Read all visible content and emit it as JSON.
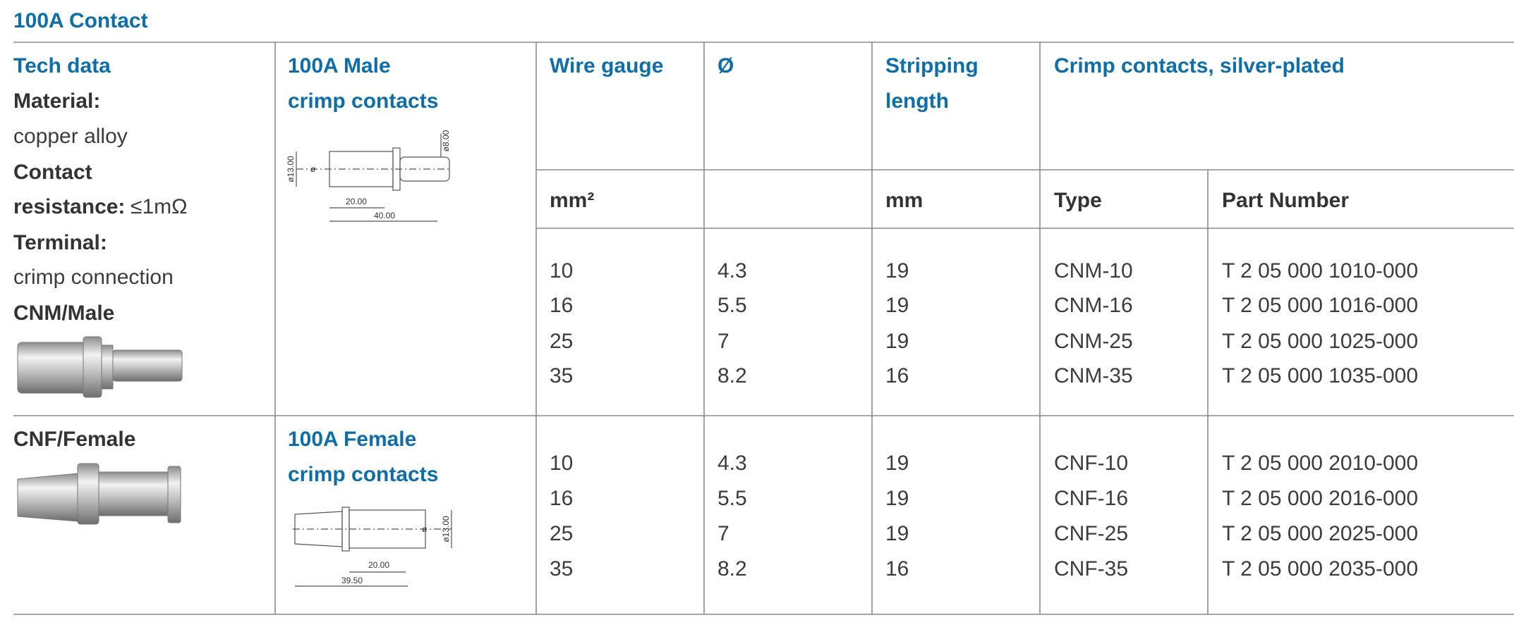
{
  "title": "100A Contact",
  "tech_data": {
    "heading": "Tech data",
    "items": [
      {
        "label": [
          "Material:"
        ],
        "value": "copper alloy"
      },
      {
        "label": [
          "Contact",
          "resistance:"
        ],
        "value": "≤1mΩ"
      },
      {
        "label": [
          "Terminal:"
        ],
        "value": "crimp connection"
      }
    ],
    "male_label": "CNM/Male",
    "female_label": "CNF/Female"
  },
  "headers": {
    "male_product": [
      "100A Male",
      "crimp contacts"
    ],
    "female_product": [
      "100A Female",
      "crimp contacts"
    ],
    "wire_gauge": "Wire gauge",
    "diameter": "Ø",
    "stripping": [
      "Stripping",
      "length"
    ],
    "crimp": "Crimp contacts, silver-plated"
  },
  "units": {
    "wire_gauge": "mm²",
    "stripping": "mm",
    "type": "Type",
    "part_number": "Part Number"
  },
  "male_rows": [
    [
      "10",
      "4.3",
      "19",
      "CNM-10",
      "T 2 05 000 1010-000"
    ],
    [
      "16",
      "5.5",
      "19",
      "CNM-16",
      "T 2 05 000 1016-000"
    ],
    [
      "25",
      "7",
      "19",
      "CNM-25",
      "T 2 05 000 1025-000"
    ],
    [
      "35",
      "8.2",
      "16",
      "CNM-35",
      "T 2 05 000 1035-000"
    ]
  ],
  "female_rows": [
    [
      "10",
      "4.3",
      "19",
      "CNF-10",
      "T 2 05 000 2010-000"
    ],
    [
      "16",
      "5.5",
      "19",
      "CNF-16",
      "T 2 05 000 2016-000"
    ],
    [
      "25",
      "7",
      "19",
      "CNF-25",
      "T 2 05 000 2025-000"
    ],
    [
      "35",
      "8.2",
      "16",
      "CNF-35",
      "T 2 05 000 2035-000"
    ]
  ],
  "male_drawing": {
    "dims": [
      "ø13.00",
      "ø",
      "20.00",
      "40.00",
      "ø8.00"
    ]
  },
  "female_drawing": {
    "dims": [
      "ø13.00",
      "ø",
      "20.00",
      "39.50"
    ]
  }
}
